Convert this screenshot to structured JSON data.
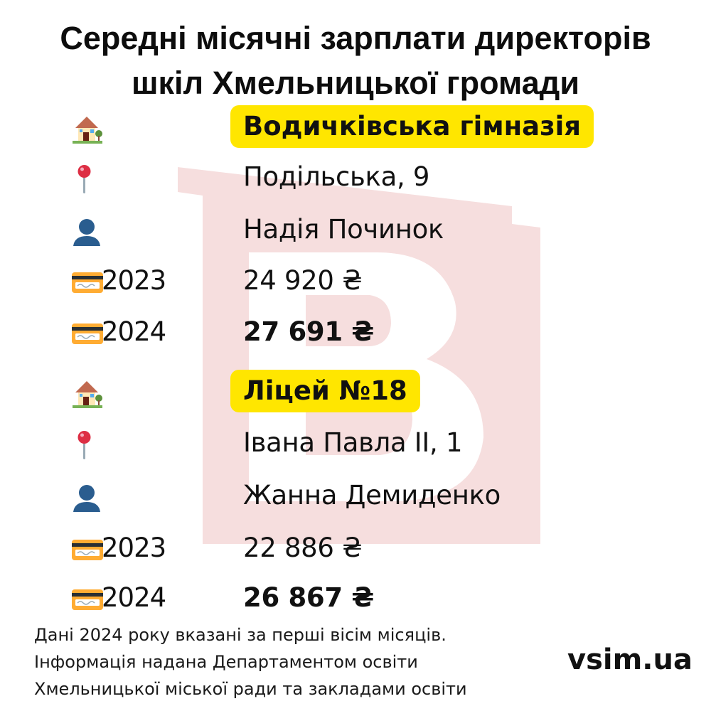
{
  "title": {
    "line1": "Середні місячні зарплати директорів",
    "line2": "шкіл Хмельницької громади"
  },
  "schools": [
    {
      "name": "Водичківська гімназія",
      "address": "Подільська, 9",
      "director": "Надія Починок",
      "salary_2023": {
        "year": "2023",
        "amount": "24 920 ₴"
      },
      "salary_2024": {
        "year": "2024",
        "amount": "27 691 ₴"
      }
    },
    {
      "name": "Ліцей №18",
      "address": "Івана Павла ІІ, 1",
      "director": "Жанна Демиденко",
      "salary_2023": {
        "year": "2023",
        "amount": "22 886 ₴"
      },
      "salary_2024": {
        "year": "2024",
        "amount": "26 867 ₴"
      }
    }
  ],
  "footer": {
    "line1": "Дані 2024 року вказані за перші вісім місяців.",
    "line2": "Інформація надана Департаментом освіти",
    "line3": "Хмельницької міської ради та закладами освіти"
  },
  "brand": "vsim.ua",
  "icons": {
    "school": "house-with-garden-icon",
    "address": "round-pushpin-icon",
    "director": "bust-silhouette-icon",
    "salary": "credit-card-icon"
  },
  "colors": {
    "highlight": "#ffe600",
    "watermark": "#f6dede",
    "text": "#111111"
  }
}
